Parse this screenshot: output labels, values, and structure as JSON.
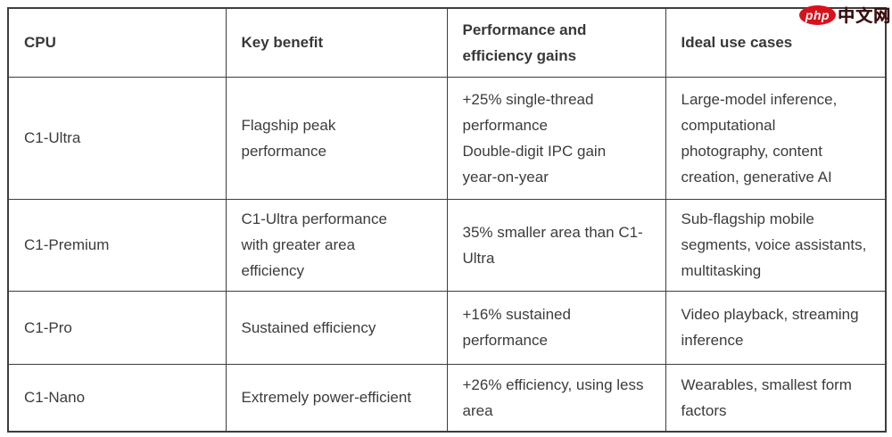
{
  "watermark": {
    "logo_text": "php",
    "site_text": "中文网",
    "logo_color": "#d8121d"
  },
  "table": {
    "columns": [
      {
        "label": "CPU"
      },
      {
        "label": "Key benefit"
      },
      {
        "label": "Performance and\nefficiency gains"
      },
      {
        "label": "Ideal use cases"
      }
    ],
    "rows": [
      {
        "cpu": "C1-Ultra",
        "benefit": "Flagship peak\nperformance",
        "gains": "+25% single-thread\nperformance\nDouble-digit IPC gain\nyear-on-year",
        "use_cases": "Large-model inference,\ncomputational\nphotography, content\ncreation, generative AI"
      },
      {
        "cpu": "C1-Premium",
        "benefit": "C1-Ultra performance\nwith greater area\nefficiency",
        "gains": "35% smaller area than C1-\nUltra",
        "use_cases": "Sub-flagship mobile\nsegments, voice assistants,\nmultitasking"
      },
      {
        "cpu": "C1-Pro",
        "benefit": "Sustained efficiency",
        "gains": "+16% sustained\nperformance",
        "use_cases": "Video playback, streaming\ninference"
      },
      {
        "cpu": "C1-Nano",
        "benefit": "Extremely power-efficient",
        "gains": "+26% efficiency, using less\narea",
        "use_cases": "Wearables, smallest form\nfactors"
      }
    ]
  }
}
